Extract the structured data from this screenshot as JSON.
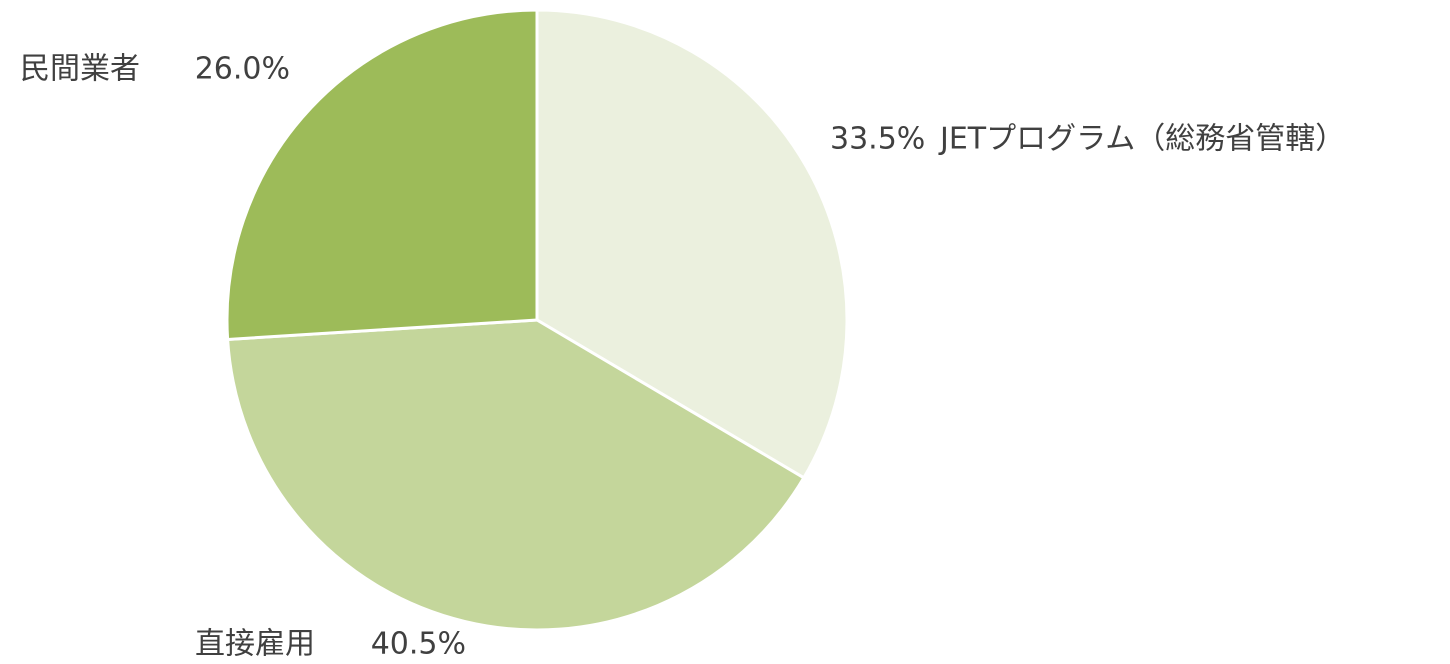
{
  "chart_data": {
    "type": "pie",
    "categories": [
      "JETプログラム（総務省管轄）",
      "直接雇用",
      "民間業者"
    ],
    "values": [
      33.5,
      40.5,
      26.0
    ],
    "value_labels": [
      "33.5%",
      "40.5%",
      "26.0%"
    ],
    "colors": [
      "#ebf0de",
      "#c4d69b",
      "#9dbb59"
    ]
  }
}
